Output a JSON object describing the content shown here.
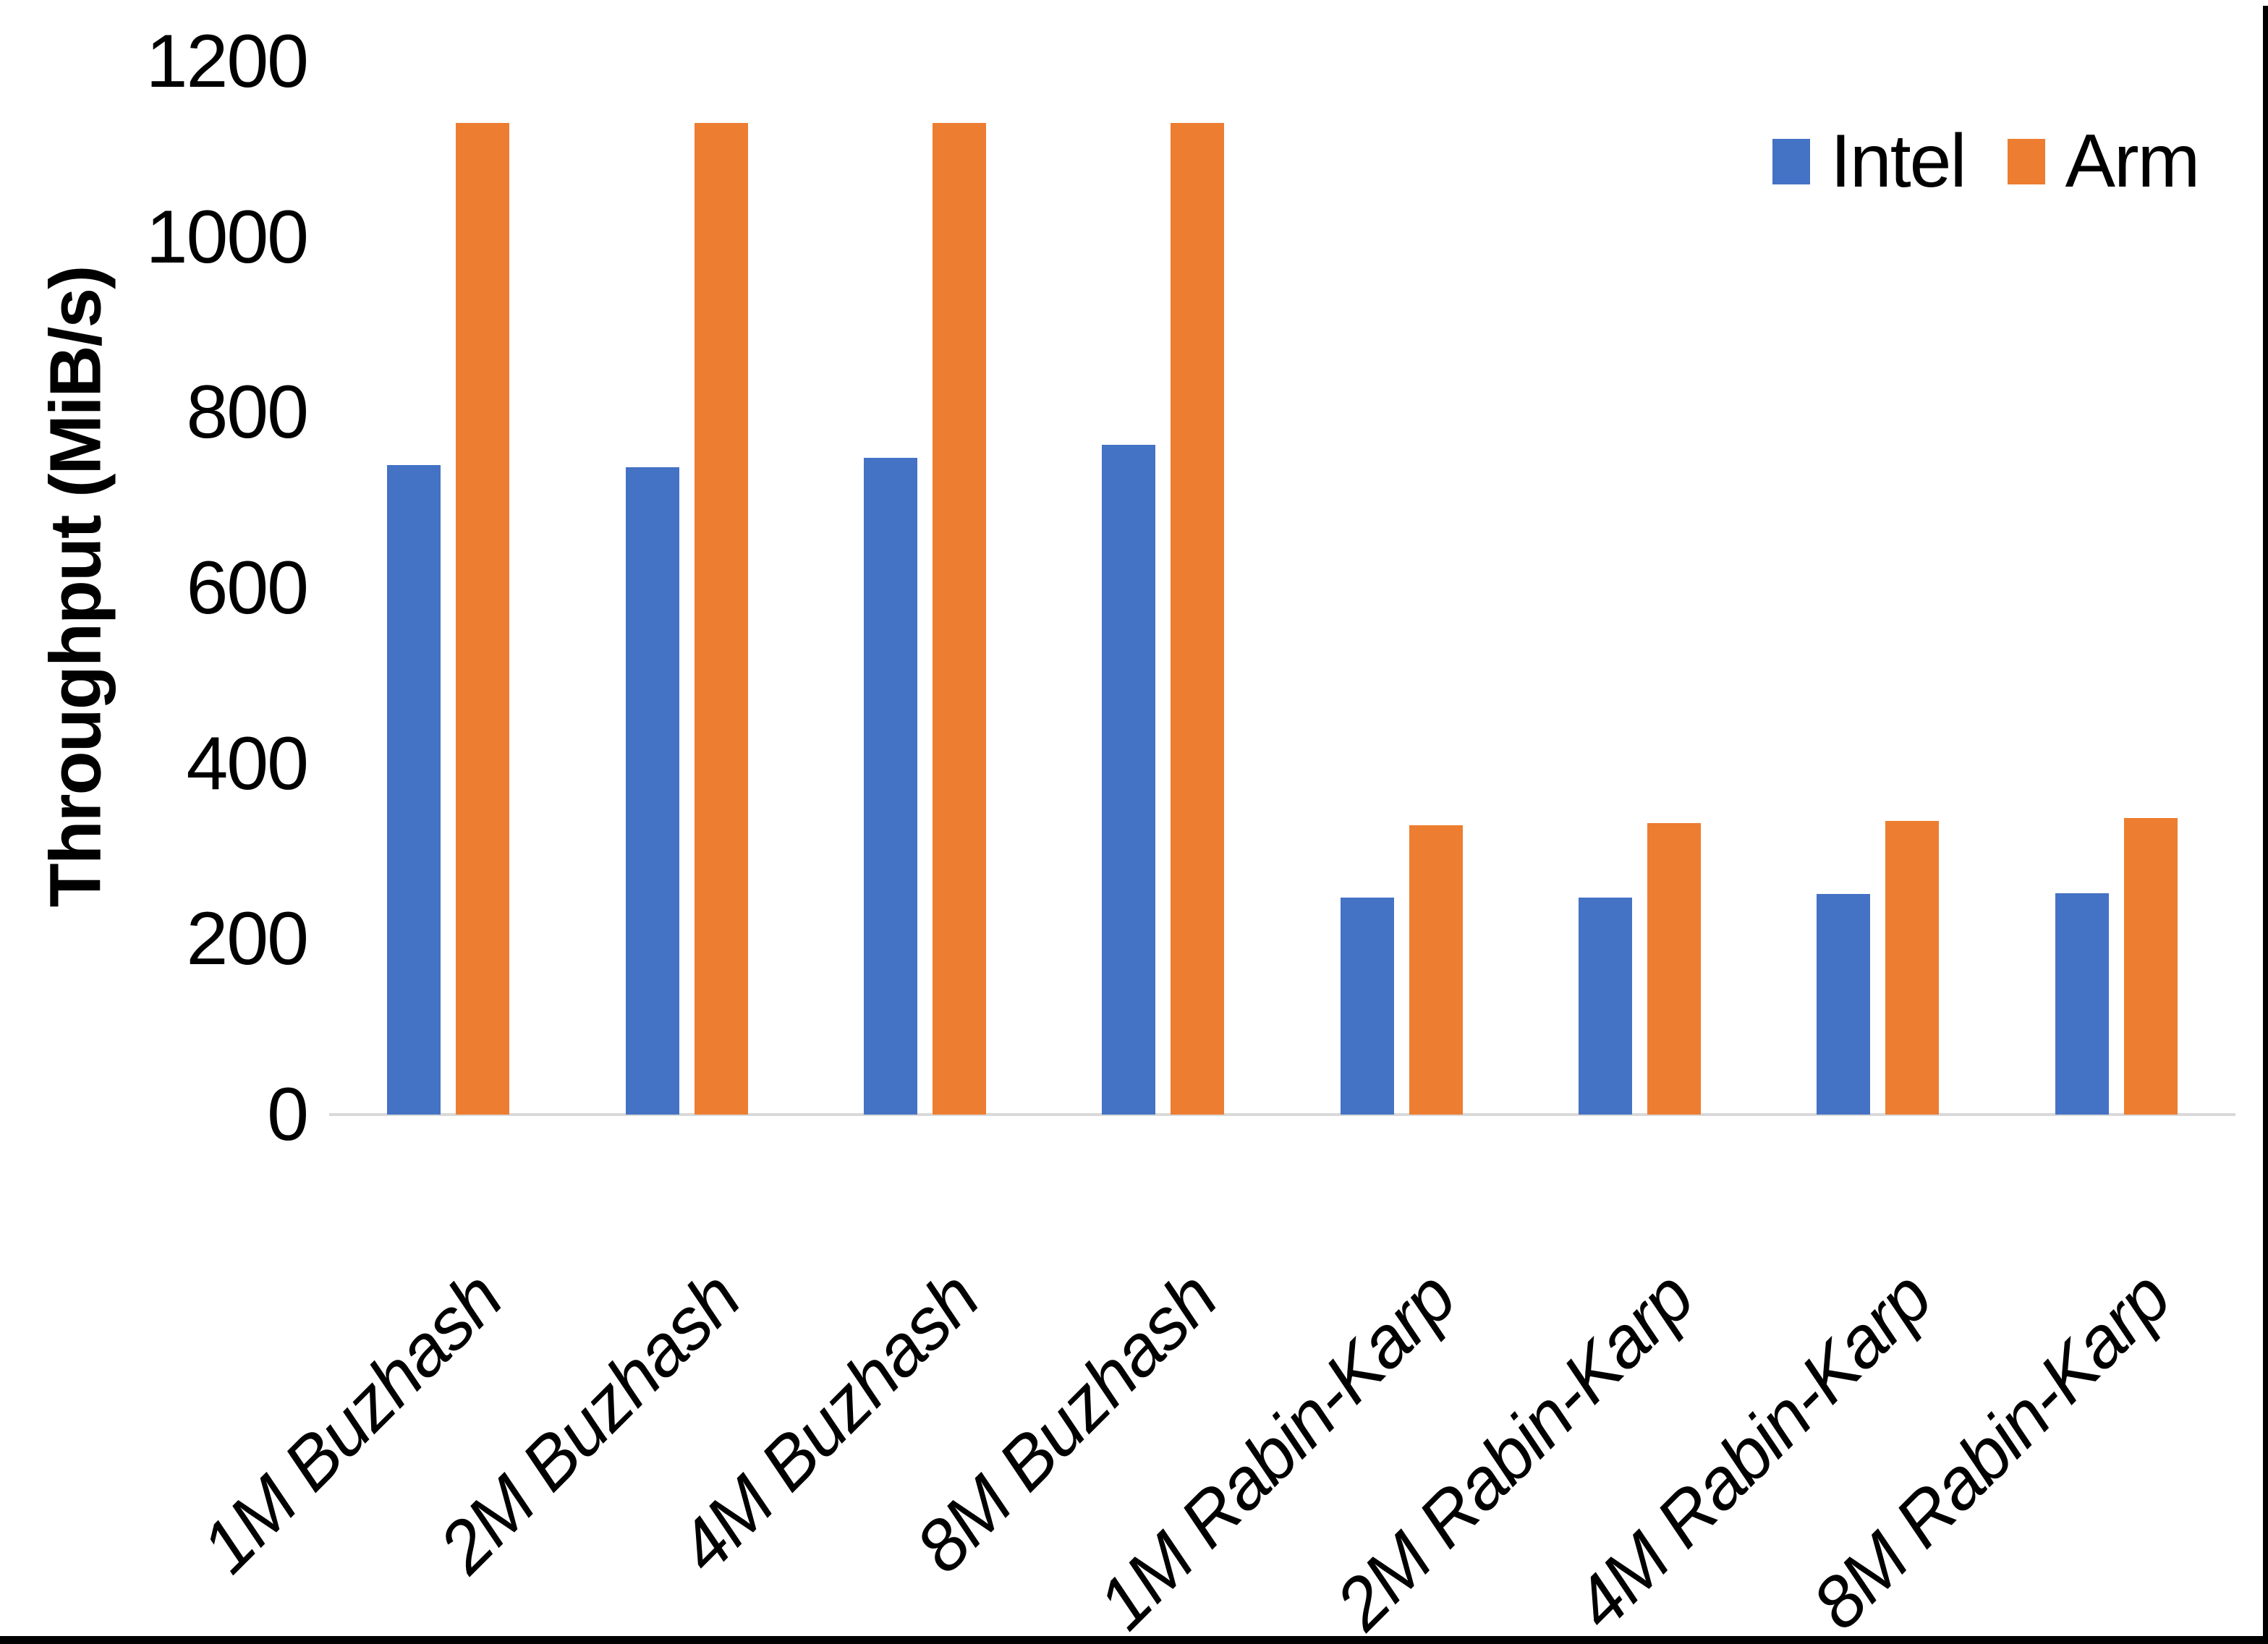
{
  "chart_data": {
    "type": "bar",
    "title": "",
    "xlabel": "",
    "ylabel": "Throughput (MiB/s)",
    "ylim": [
      0,
      1200
    ],
    "yticks": [
      0,
      200,
      400,
      600,
      800,
      1000,
      1200
    ],
    "grid": false,
    "legend_position": "top-right",
    "categories": [
      "1M Buzhash",
      "2M Buzhash",
      "4M Buzhash",
      "8M Buzhash",
      "1M Rabin-Karp",
      "2M Rabin-Karp",
      "4M Rabin-Karp",
      "8M Rabin-Karp"
    ],
    "series": [
      {
        "name": "Intel",
        "color": "#4472C4",
        "values": [
          740,
          738,
          748,
          763,
          247,
          247,
          251,
          252
        ]
      },
      {
        "name": "Arm",
        "color": "#ED7D31",
        "values": [
          1130,
          1130,
          1130,
          1130,
          330,
          332,
          335,
          338
        ]
      }
    ]
  },
  "legend": {
    "items": [
      {
        "label": "Intel",
        "color": "#4472C4"
      },
      {
        "label": "Arm",
        "color": "#ED7D31"
      }
    ]
  }
}
